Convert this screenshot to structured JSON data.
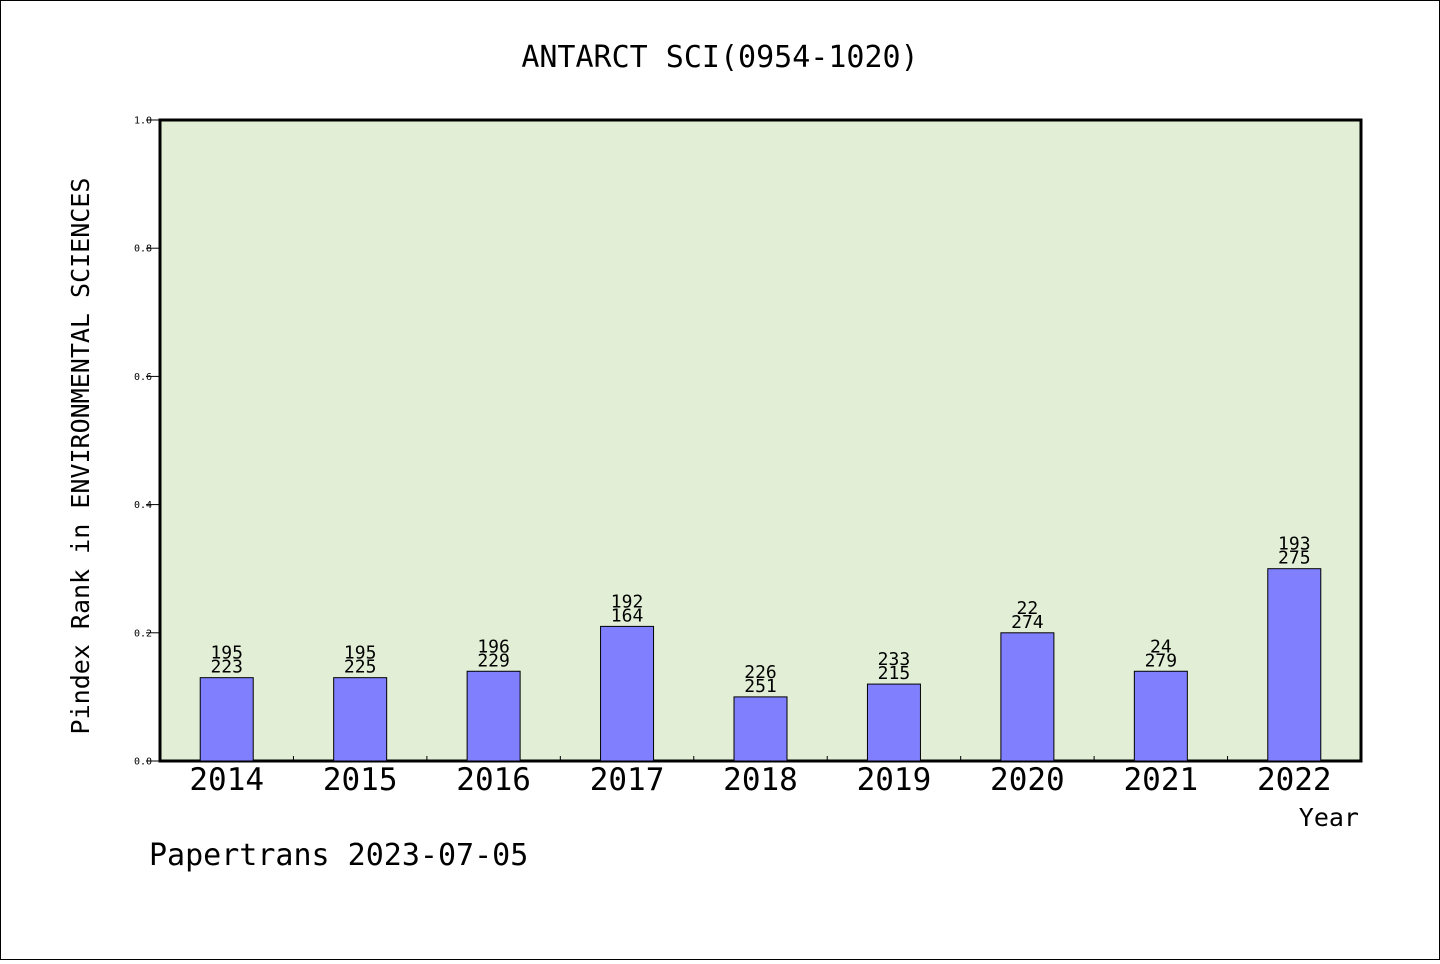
{
  "chart_data": {
    "type": "bar",
    "title": "ANTARCT SCI(0954-1020)",
    "xlabel": "Year",
    "ylabel": "Pindex Rank in ENVIRONMENTAL SCIENCES",
    "ylim": [
      0,
      1.0
    ],
    "yticks": [
      "0.0",
      "0.2",
      "0.4",
      "0.6",
      "0.8",
      "1.0"
    ],
    "categories": [
      "2014",
      "2015",
      "2016",
      "2017",
      "2018",
      "2019",
      "2020",
      "2021",
      "2022"
    ],
    "values": [
      0.13,
      0.13,
      0.14,
      0.21,
      0.1,
      0.12,
      0.2,
      0.14,
      0.3
    ],
    "labels_top": [
      "195",
      "195",
      "196",
      "192",
      "226",
      "233",
      "22",
      "24",
      "193"
    ],
    "labels_bottom": [
      "223",
      "225",
      "229",
      "164",
      "251",
      "215",
      "274",
      "279",
      "275"
    ],
    "grid": false,
    "plot_background": "#e2efd6",
    "bar_color": "#8080ff"
  },
  "footer": "Papertrans 2023-07-05"
}
